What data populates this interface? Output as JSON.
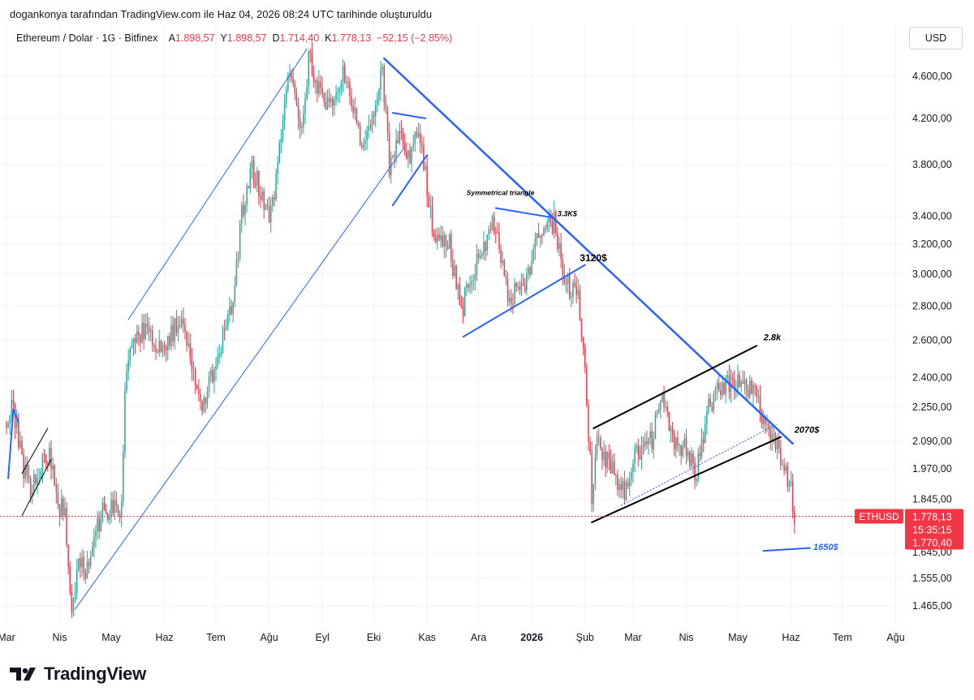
{
  "header": {
    "title": "dogankonya tarafından TradingView.com ile Haz 04, 2026 08:24 UTC tarihinde oluşturuldu"
  },
  "legend": {
    "symbol": "Ethereum / Dolar · 1G · Bitfinex",
    "o_label": "A",
    "o_value": "1.898,57",
    "h_label": "Y",
    "h_value": "1.898,57",
    "l_label": "D",
    "l_value": "1.714,40",
    "c_label": "K",
    "c_value": "1.778,13",
    "change": "−52,15 (−2,85%)"
  },
  "currency": "USD",
  "footer": {
    "brand": "TradingView"
  },
  "colors": {
    "up": "#26a69a",
    "down": "#f23645",
    "trend": "#2962ff",
    "black": "#000000",
    "grid": "#f0f3fa"
  },
  "chart_data": {
    "type": "candlestick",
    "price_axis": {
      "scale": "log",
      "ticks": [
        {
          "value": 4600,
          "label": "4.600,00"
        },
        {
          "value": 4200,
          "label": "4.200,00"
        },
        {
          "value": 3800,
          "label": "3.800,00"
        },
        {
          "value": 3400,
          "label": "3.400,00"
        },
        {
          "value": 3200,
          "label": "3.200,00"
        },
        {
          "value": 3000,
          "label": "3.000,00"
        },
        {
          "value": 2800,
          "label": "2.800,00"
        },
        {
          "value": 2600,
          "label": "2.600,00"
        },
        {
          "value": 2400,
          "label": "2.400,00"
        },
        {
          "value": 2250,
          "label": "2.250,00"
        },
        {
          "value": 2090,
          "label": "2.090,00"
        },
        {
          "value": 1970,
          "label": "1.970,00"
        },
        {
          "value": 1845,
          "label": "1.845,00"
        },
        {
          "value": 1645,
          "label": "1.645,00"
        },
        {
          "value": 1555,
          "label": "1.555,00"
        },
        {
          "value": 1465,
          "label": "1.465,00"
        }
      ]
    },
    "time_axis": {
      "start": "2025-03-01",
      "end": "2026-08-05",
      "ticks": [
        {
          "date": "2025-03-01",
          "label": "Mar",
          "bold": false
        },
        {
          "date": "2025-04-01",
          "label": "Nis",
          "bold": false
        },
        {
          "date": "2025-05-01",
          "label": "May",
          "bold": false
        },
        {
          "date": "2025-06-01",
          "label": "Haz",
          "bold": false
        },
        {
          "date": "2025-07-01",
          "label": "Tem",
          "bold": false
        },
        {
          "date": "2025-08-01",
          "label": "Ağu",
          "bold": false
        },
        {
          "date": "2025-09-01",
          "label": "Eyl",
          "bold": false
        },
        {
          "date": "2025-10-01",
          "label": "Eki",
          "bold": false
        },
        {
          "date": "2025-11-01",
          "label": "Kas",
          "bold": false
        },
        {
          "date": "2025-12-01",
          "label": "Ara",
          "bold": false
        },
        {
          "date": "2026-01-01",
          "label": "2026",
          "bold": true
        },
        {
          "date": "2026-02-01",
          "label": "Şub",
          "bold": false
        },
        {
          "date": "2026-03-01",
          "label": "Mar",
          "bold": false
        },
        {
          "date": "2026-04-01",
          "label": "Nis",
          "bold": false
        },
        {
          "date": "2026-05-01",
          "label": "May",
          "bold": false
        },
        {
          "date": "2026-06-01",
          "label": "Haz",
          "bold": false
        },
        {
          "date": "2026-07-01",
          "label": "Tem",
          "bold": false
        },
        {
          "date": "2026-08-01",
          "label": "Ağu",
          "bold": false
        }
      ]
    },
    "price_path": [
      [
        "2025-03-01",
        2180
      ],
      [
        "2025-03-05",
        2250
      ],
      [
        "2025-03-10",
        2000
      ],
      [
        "2025-03-15",
        1890
      ],
      [
        "2025-03-20",
        1960
      ],
      [
        "2025-03-26",
        2040
      ],
      [
        "2025-03-31",
        1830
      ],
      [
        "2025-04-04",
        1780
      ],
      [
        "2025-04-08",
        1440
      ],
      [
        "2025-04-12",
        1590
      ],
      [
        "2025-04-18",
        1590
      ],
      [
        "2025-04-25",
        1790
      ],
      [
        "2025-05-01",
        1800
      ],
      [
        "2025-05-07",
        1810
      ],
      [
        "2025-05-09",
        2350
      ],
      [
        "2025-05-14",
        2620
      ],
      [
        "2025-05-22",
        2650
      ],
      [
        "2025-05-31",
        2530
      ],
      [
        "2025-06-11",
        2760
      ],
      [
        "2025-06-22",
        2250
      ],
      [
        "2025-07-01",
        2470
      ],
      [
        "2025-07-10",
        2780
      ],
      [
        "2025-07-16",
        3400
      ],
      [
        "2025-07-22",
        3760
      ],
      [
        "2025-08-02",
        3400
      ],
      [
        "2025-08-07",
        3900
      ],
      [
        "2025-08-13",
        4700
      ],
      [
        "2025-08-20",
        4100
      ],
      [
        "2025-08-24",
        4800
      ],
      [
        "2025-09-01",
        4350
      ],
      [
        "2025-09-08",
        4300
      ],
      [
        "2025-09-13",
        4700
      ],
      [
        "2025-09-25",
        3900
      ],
      [
        "2025-10-06",
        4650
      ],
      [
        "2025-10-10",
        3800
      ],
      [
        "2025-10-15",
        4050
      ],
      [
        "2025-10-22",
        3850
      ],
      [
        "2025-10-27",
        4150
      ],
      [
        "2025-11-04",
        3300
      ],
      [
        "2025-11-14",
        3200
      ],
      [
        "2025-11-21",
        2750
      ],
      [
        "2025-11-25",
        2950
      ],
      [
        "2025-12-03",
        3150
      ],
      [
        "2025-12-10",
        3350
      ],
      [
        "2025-12-18",
        2850
      ],
      [
        "2025-12-28",
        2950
      ],
      [
        "2026-01-06",
        3300
      ],
      [
        "2026-01-14",
        3350
      ],
      [
        "2026-01-20",
        2950
      ],
      [
        "2026-01-28",
        2850
      ],
      [
        "2026-02-01",
        2450
      ],
      [
        "2026-02-05",
        1860
      ],
      [
        "2026-02-08",
        2100
      ],
      [
        "2026-02-15",
        1980
      ],
      [
        "2026-02-24",
        1860
      ],
      [
        "2026-03-03",
        2050
      ],
      [
        "2026-03-12",
        2100
      ],
      [
        "2026-03-17",
        2300
      ],
      [
        "2026-03-24",
        2100
      ],
      [
        "2026-04-01",
        2050
      ],
      [
        "2026-04-07",
        1950
      ],
      [
        "2026-04-14",
        2250
      ],
      [
        "2026-04-20",
        2350
      ],
      [
        "2026-04-28",
        2380
      ],
      [
        "2026-05-06",
        2350
      ],
      [
        "2026-05-11",
        2300
      ],
      [
        "2026-05-16",
        2200
      ],
      [
        "2026-05-22",
        2100
      ],
      [
        "2026-05-27",
        2000
      ],
      [
        "2026-06-01",
        1900
      ],
      [
        "2026-06-03",
        1778
      ]
    ],
    "current_price": {
      "symbol": "ETHUSD",
      "price": "1.778,13",
      "countdown": "15:35:15",
      "low": "1.770,40",
      "value": 1778.13
    },
    "trendlines": [
      {
        "name": "channel-upper",
        "color": "trend",
        "width": 1,
        "points": [
          [
            "2025-05-11",
            2720
          ],
          [
            "2025-08-23",
            4880
          ]
        ]
      },
      {
        "name": "channel-lower",
        "color": "trend",
        "width": 1,
        "points": [
          [
            "2025-04-10",
            1455
          ],
          [
            "2025-10-19",
            3950
          ]
        ]
      },
      {
        "name": "main-downtrend",
        "color": "trend",
        "width": 2.5,
        "points": [
          [
            "2025-10-07",
            4780
          ],
          [
            "2026-06-02",
            2080
          ]
        ]
      },
      {
        "name": "flag-top",
        "color": "trend",
        "width": 2,
        "points": [
          [
            "2025-10-12",
            4250
          ],
          [
            "2025-10-31",
            4200
          ]
        ]
      },
      {
        "name": "flag-pole",
        "color": "trend",
        "width": 2,
        "points": [
          [
            "2025-10-12",
            3480
          ],
          [
            "2025-11-01",
            3880
          ]
        ]
      },
      {
        "name": "triangle-top",
        "color": "trend",
        "width": 2,
        "points": [
          [
            "2025-12-11",
            3460
          ],
          [
            "2026-01-13",
            3390
          ]
        ]
      },
      {
        "name": "triangle-bottom",
        "color": "trend",
        "width": 2,
        "points": [
          [
            "2025-11-22",
            2620
          ],
          [
            "2026-02-01",
            3060
          ]
        ]
      },
      {
        "name": "wedge-top",
        "color": "black",
        "width": 2,
        "points": [
          [
            "2026-02-06",
            2150
          ],
          [
            "2026-05-12",
            2570
          ]
        ]
      },
      {
        "name": "wedge-bottom",
        "color": "black",
        "width": 2,
        "points": [
          [
            "2026-02-05",
            1755
          ],
          [
            "2026-05-26",
            2110
          ]
        ]
      },
      {
        "name": "target-1650",
        "color": "trend",
        "width": 2,
        "points": [
          [
            "2026-05-16",
            1650
          ],
          [
            "2026-06-12",
            1660
          ]
        ]
      },
      {
        "name": "early-flag-a",
        "color": "trend",
        "width": 2,
        "points": [
          [
            "2025-03-02",
            1930
          ],
          [
            "2025-03-05",
            2240
          ]
        ]
      },
      {
        "name": "early-flag-b",
        "color": "trend",
        "width": 2,
        "points": [
          [
            "2025-03-05",
            2240
          ],
          [
            "2025-03-08",
            2180
          ]
        ]
      },
      {
        "name": "early-channel-top",
        "color": "black",
        "width": 1,
        "points": [
          [
            "2025-03-10",
            1950
          ],
          [
            "2025-03-25",
            2150
          ]
        ]
      },
      {
        "name": "early-channel-bottom",
        "color": "black",
        "width": 1,
        "points": [
          [
            "2025-03-10",
            1780
          ],
          [
            "2025-03-27",
            2010
          ]
        ]
      }
    ],
    "dotted_lines": [
      {
        "name": "wedge-dotted",
        "color": "trend",
        "points": [
          [
            "2026-02-22",
            1820
          ],
          [
            "2026-05-24",
            2170
          ]
        ]
      }
    ],
    "annotations": [
      {
        "text": "Symmetrical triangle",
        "date": "2025-11-24",
        "price": 3560,
        "bold": true,
        "italic": true,
        "size": 8.5,
        "color": "#000000"
      },
      {
        "text": "3.3K$",
        "date": "2026-01-16",
        "price": 3400,
        "bold": true,
        "italic": true,
        "size": 9,
        "color": "#000000"
      },
      {
        "text": "3120$",
        "date": "2026-01-29",
        "price": 3085,
        "bold": true,
        "italic": false,
        "size": 12,
        "color": "#000000"
      },
      {
        "text": "2.8k",
        "date": "2026-05-16",
        "price": 2600,
        "bold": true,
        "italic": true,
        "size": 11,
        "color": "#000000"
      },
      {
        "text": "2070$",
        "date": "2026-06-03",
        "price": 2130,
        "bold": true,
        "italic": true,
        "size": 11,
        "color": "#000000"
      },
      {
        "text": "1650$",
        "date": "2026-06-14",
        "price": 1653,
        "bold": true,
        "italic": true,
        "size": 11,
        "color": "#2962ff"
      }
    ]
  }
}
